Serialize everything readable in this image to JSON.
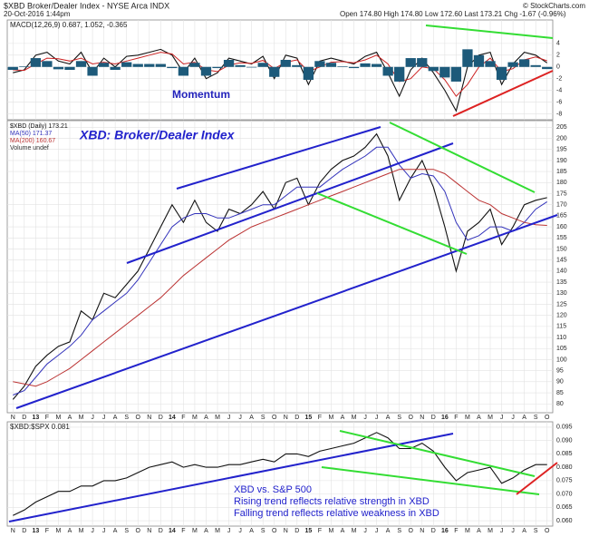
{
  "header": {
    "symbol": "$XBD Broker/Dealer Index - NYSE Arca INDX",
    "date": "20-Oct-2016 1:44pm",
    "quote": "Open 174.80 High 174.80 Low 172.60 Last 173.21 Chg -1.67 (-0.96%)",
    "credit": "© StockCharts.com"
  },
  "chart_data": [
    {
      "type": "macd",
      "label": "MACD(12,26,9) 0.687, 1.052, -0.365",
      "annotation": "Momentum",
      "ylim": [
        -9,
        8
      ],
      "yticks": [
        4,
        2,
        0,
        -2,
        -4,
        -6,
        -8
      ],
      "grid": true,
      "series": [
        {
          "color": "#111111",
          "values": [
            -1,
            -0.5,
            2,
            2.5,
            1,
            0.5,
            2.5,
            -1,
            1.5,
            0,
            1.8,
            2,
            2.5,
            3,
            2,
            -1,
            1.5,
            -2,
            -1,
            1.5,
            1,
            0.5,
            1.8,
            -2,
            2,
            1.5,
            -3,
            1,
            1.5,
            1,
            0.5,
            1.8,
            2.5,
            -1,
            -5,
            -0.5,
            1.5,
            -1,
            -4,
            -7.5,
            0,
            2,
            2.5,
            -3,
            0.5,
            2.5,
            2,
            0.687
          ]
        },
        {
          "color": "#cc2222",
          "values": [
            -0.5,
            -0.6,
            0.5,
            1.5,
            1.4,
            1,
            1.5,
            0.5,
            0.8,
            0.5,
            1,
            1.5,
            2,
            2.5,
            2.2,
            0.5,
            0.8,
            -0.5,
            -0.8,
            0.3,
            0.7,
            0.6,
            1.1,
            -0.3,
            0.8,
            1.2,
            -0.8,
            0,
            0.8,
            0.9,
            0.7,
            1.2,
            2,
            0.5,
            -2.5,
            -2,
            0,
            -0.3,
            -2.2,
            -5,
            -3,
            0,
            1.5,
            -0.8,
            -0.3,
            1.2,
            1.7,
            1.052
          ]
        },
        {
          "color": "#1d5a7a",
          "style": "histogram",
          "values": [
            -0.5,
            0.1,
            1.5,
            1,
            -0.4,
            -0.5,
            1,
            -1.5,
            0.7,
            -0.5,
            0.8,
            0.5,
            0.5,
            0.5,
            -0.2,
            -1.5,
            0.7,
            -1.5,
            -0.2,
            1.2,
            0.3,
            -0.1,
            0.7,
            -1.7,
            1.2,
            0.3,
            -2.2,
            1,
            0.7,
            0.1,
            -0.2,
            0.6,
            0.5,
            -1.5,
            -2.5,
            1.5,
            1.5,
            -0.7,
            -1.8,
            -2.5,
            3,
            2,
            1,
            -2.2,
            0.8,
            1.3,
            0.3,
            -0.365
          ]
        }
      ]
    },
    {
      "type": "price",
      "title": "XBD: Broker/Dealer Index",
      "legend": [
        "$XBD (Daily) 173.21",
        "MA(50) 171.37",
        "MA(200) 160.67",
        "Volume undef"
      ],
      "categories": [
        "N",
        "D",
        "13",
        "F",
        "M",
        "A",
        "M",
        "J",
        "J",
        "A",
        "S",
        "O",
        "N",
        "D",
        "14",
        "F",
        "M",
        "A",
        "M",
        "J",
        "J",
        "A",
        "S",
        "O",
        "N",
        "D",
        "15",
        "F",
        "M",
        "A",
        "M",
        "J",
        "J",
        "A",
        "S",
        "O",
        "N",
        "D",
        "16",
        "F",
        "M",
        "A",
        "M",
        "J",
        "J",
        "A",
        "S",
        "O"
      ],
      "ylim": [
        76,
        208
      ],
      "yticks": [
        80,
        85,
        90,
        95,
        100,
        105,
        110,
        115,
        120,
        125,
        130,
        135,
        140,
        145,
        150,
        155,
        160,
        165,
        170,
        175,
        180,
        185,
        190,
        195,
        200,
        205
      ],
      "grid": true,
      "series": [
        {
          "color": "#111111",
          "values": [
            82,
            88,
            97,
            102,
            106,
            108,
            122,
            118,
            130,
            128,
            134,
            140,
            150,
            160,
            170,
            162,
            172,
            162,
            158,
            168,
            166,
            170,
            176,
            168,
            180,
            182,
            170,
            180,
            186,
            190,
            192,
            196,
            202,
            192,
            172,
            182,
            190,
            178,
            160,
            140,
            158,
            162,
            168,
            152,
            160,
            170,
            172,
            173.21
          ]
        },
        {
          "color": "#3333bb",
          "values": [
            84,
            86,
            92,
            98,
            102,
            106,
            111,
            118,
            122,
            126,
            130,
            136,
            144,
            152,
            160,
            164,
            166,
            166,
            164,
            164,
            166,
            168,
            170,
            170,
            174,
            178,
            178,
            178,
            182,
            186,
            189,
            192,
            196,
            196,
            188,
            182,
            184,
            183,
            176,
            162,
            154,
            156,
            160,
            160,
            158,
            162,
            168,
            171.37
          ]
        },
        {
          "color": "#bb3333",
          "values": [
            90,
            89,
            88,
            90,
            93,
            96,
            100,
            104,
            108,
            112,
            116,
            120,
            124,
            128,
            133,
            138,
            142,
            146,
            150,
            154,
            157,
            160,
            162,
            164,
            166,
            168,
            170,
            172,
            174,
            176,
            178,
            180,
            182,
            184,
            186,
            186,
            186,
            186,
            184,
            180,
            176,
            172,
            170,
            166,
            164,
            162,
            161,
            160.67
          ]
        }
      ]
    },
    {
      "type": "ratio",
      "label": "$XBD:$SPX 0.081",
      "annotations": [
        "XBD vs. S&P 500",
        "Rising trend reflects relative strength in XBD",
        "Falling trend reflects relative weakness in XBD"
      ],
      "categories": [
        "N",
        "D",
        "13",
        "F",
        "M",
        "A",
        "M",
        "J",
        "J",
        "A",
        "S",
        "O",
        "N",
        "D",
        "14",
        "F",
        "M",
        "A",
        "M",
        "J",
        "J",
        "A",
        "S",
        "O",
        "N",
        "D",
        "15",
        "F",
        "M",
        "A",
        "M",
        "J",
        "J",
        "A",
        "S",
        "O",
        "N",
        "D",
        "16",
        "F",
        "M",
        "A",
        "M",
        "J",
        "J",
        "A",
        "S",
        "O"
      ],
      "ylim": [
        0.058,
        0.097
      ],
      "yticks": [
        {
          "value": 0.06,
          "label": "0.060"
        },
        {
          "value": 0.065,
          "label": "0.065"
        },
        {
          "value": 0.07,
          "label": "0.070"
        },
        {
          "value": 0.075,
          "label": "0.075"
        },
        {
          "value": 0.08,
          "label": "0.080"
        },
        {
          "value": 0.085,
          "label": "0.085"
        },
        {
          "value": 0.09,
          "label": "0.090"
        },
        {
          "value": 0.095,
          "label": "0.095"
        }
      ],
      "grid": true,
      "series": [
        {
          "color": "#111111",
          "values": [
            0.062,
            0.064,
            0.067,
            0.069,
            0.071,
            0.071,
            0.073,
            0.073,
            0.075,
            0.075,
            0.076,
            0.078,
            0.08,
            0.081,
            0.082,
            0.08,
            0.081,
            0.08,
            0.08,
            0.081,
            0.081,
            0.082,
            0.083,
            0.082,
            0.085,
            0.085,
            0.084,
            0.086,
            0.087,
            0.088,
            0.089,
            0.091,
            0.093,
            0.091,
            0.087,
            0.087,
            0.089,
            0.086,
            0.08,
            0.075,
            0.078,
            0.079,
            0.08,
            0.074,
            0.076,
            0.079,
            0.081,
            0.081
          ]
        }
      ]
    }
  ]
}
